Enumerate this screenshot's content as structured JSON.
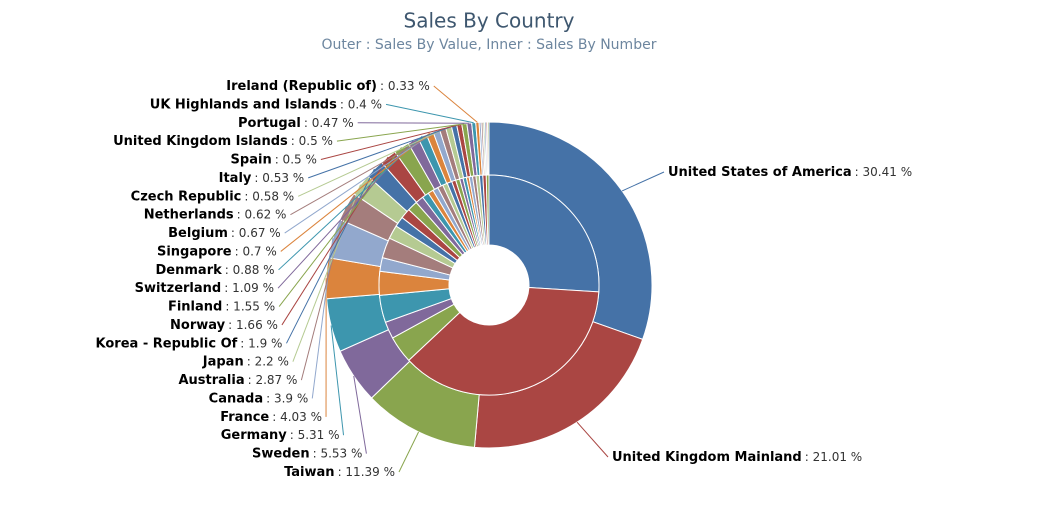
{
  "chart_data": {
    "type": "donut",
    "title": "Sales By Country",
    "subtitle": "Outer : Sales By Value, Inner : Sales By Number",
    "categories": [
      "United States of America",
      "United Kingdom Mainland",
      "Taiwan",
      "Sweden",
      "Germany",
      "France",
      "Canada",
      "Australia",
      "Japan",
      "Korea - Republic Of",
      "Norway",
      "Finland",
      "Switzerland",
      "Denmark",
      "Singapore",
      "Belgium",
      "Netherlands",
      "Czech Republic",
      "Italy",
      "Spain",
      "United Kingdom Islands",
      "Portugal",
      "UK Highlands and Islands",
      "Ireland (Republic of)",
      null,
      null,
      null,
      null,
      null,
      null
    ],
    "colors": [
      "#4572A7",
      "#AA4643",
      "#89A54E",
      "#80699B",
      "#3D96AE",
      "#DB843D",
      "#92A8CD",
      "#A47D7C",
      "#B5CA92",
      "#4572A7",
      "#AA4643",
      "#89A54E",
      "#80699B",
      "#3D96AE",
      "#DB843D",
      "#92A8CD",
      "#A47D7C",
      "#B5CA92",
      "#4572A7",
      "#AA4643",
      "#89A54E",
      "#80699B",
      "#3D96AE",
      "#DB843D",
      "#92A8CD",
      "#A47D7C",
      "#B5CA92",
      "#4572A7",
      "#AA4643",
      "#89A54E"
    ],
    "series": [
      {
        "values": [
          30.41,
          21.01,
          11.39,
          5.53,
          5.31,
          4.03,
          3.9,
          2.87,
          2.2,
          1.9,
          1.66,
          1.55,
          1.09,
          0.88,
          0.7,
          0.67,
          0.62,
          0.58,
          0.53,
          0.5,
          0.5,
          0.47,
          0.4,
          0.33,
          0.2,
          0.18,
          0.16,
          0.15,
          0.14,
          0.14
        ],
        "value_labels": [
          ": 30.41 %",
          ": 21.01 %",
          ": 11.39 %",
          ": 5.53 %",
          ": 5.31 %",
          ": 4.03 %",
          ": 3.9 %",
          ": 2.87 %",
          ": 2.2 %",
          ": 1.9 %",
          ": 1.66 %",
          ": 1.55 %",
          ": 1.09 %",
          ": 0.88 %",
          ": 0.7 %",
          ": 0.67 %",
          ": 0.62 %",
          ": 0.58 %",
          ": 0.53 %",
          ": 0.5 %",
          ": 0.5 %",
          ": 0.47 %",
          ": 0.4 %",
          ": 0.33 %",
          null,
          null,
          null,
          null,
          null,
          null
        ]
      },
      {
        "values": [
          26,
          37,
          4,
          2.5,
          4,
          3.5,
          2,
          3,
          2,
          1.5,
          1.5,
          1.5,
          1.2,
          1,
          0.8,
          0.8,
          0.8,
          0.7,
          0.7,
          0.6,
          0.6,
          0.5,
          0.5,
          0.4,
          0.5,
          0.5,
          0.5,
          0.5,
          0.5,
          0.4
        ]
      }
    ]
  }
}
